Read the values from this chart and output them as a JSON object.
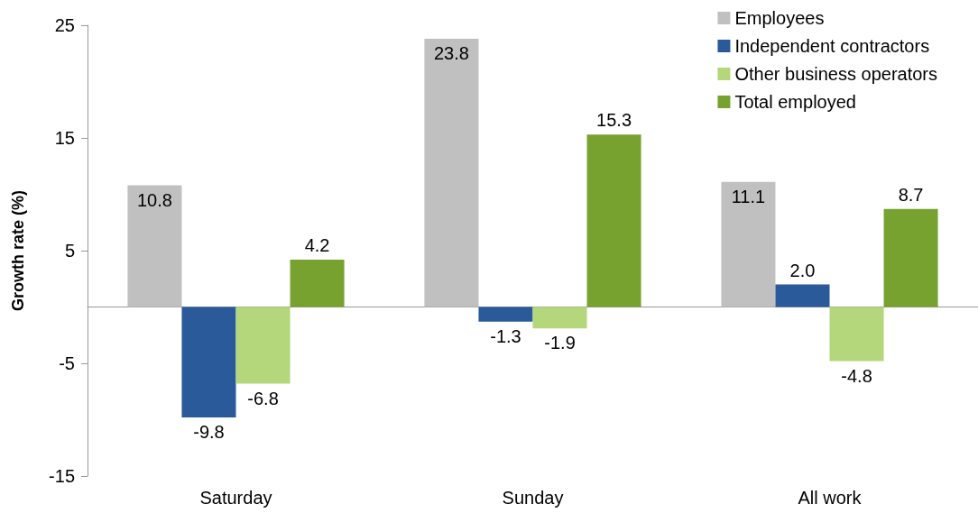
{
  "chart_data": {
    "type": "bar",
    "ylabel": "Growth rate (%)",
    "categories": [
      "Saturday",
      "Sunday",
      "All work"
    ],
    "series": [
      {
        "name": "Employees",
        "color": "#c0c0c0",
        "values": [
          10.8,
          23.8,
          11.1
        ]
      },
      {
        "name": "Independent contractors",
        "color": "#2a5a9a",
        "values": [
          -9.8,
          -1.3,
          2.0
        ],
        "value_labels": [
          "-9.8",
          "-1.3",
          "2.0"
        ]
      },
      {
        "name": "Other business operators",
        "color": "#b3d77a",
        "values": [
          -6.8,
          -1.9,
          -4.8
        ]
      },
      {
        "name": "Total employed",
        "color": "#78a22f",
        "values": [
          4.2,
          15.3,
          8.7
        ]
      }
    ],
    "ylim": [
      -15,
      25
    ],
    "yticks": [
      -15,
      -5,
      5,
      15,
      25
    ],
    "grid": false,
    "legend": "top right",
    "data_labels": true
  }
}
